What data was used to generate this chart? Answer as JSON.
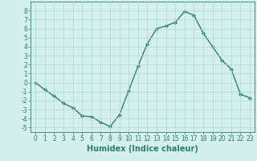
{
  "x": [
    0,
    1,
    2,
    3,
    4,
    5,
    6,
    7,
    8,
    9,
    10,
    11,
    12,
    13,
    14,
    15,
    16,
    17,
    18,
    19,
    20,
    21,
    22,
    23
  ],
  "y": [
    0.0,
    -0.8,
    -1.5,
    -2.3,
    -2.8,
    -3.7,
    -3.8,
    -4.4,
    -4.9,
    -3.6,
    -0.9,
    1.8,
    4.3,
    6.0,
    6.3,
    6.7,
    7.9,
    7.5,
    5.5,
    4.0,
    2.5,
    1.5,
    -1.3,
    -1.7
  ],
  "line_color": "#2e7d6e",
  "marker": "D",
  "marker_size": 2,
  "linewidth": 1.0,
  "bg_color": "#d4f0ec",
  "grid_color": "#b0d8d2",
  "xlabel": "Humidex (Indice chaleur)",
  "xlim": [
    -0.5,
    23.5
  ],
  "ylim": [
    -5.5,
    9.0
  ],
  "yticks": [
    -5,
    -4,
    -3,
    -2,
    -1,
    0,
    1,
    2,
    3,
    4,
    5,
    6,
    7,
    8
  ],
  "xticks": [
    0,
    1,
    2,
    3,
    4,
    5,
    6,
    7,
    8,
    9,
    10,
    11,
    12,
    13,
    14,
    15,
    16,
    17,
    18,
    19,
    20,
    21,
    22,
    23
  ],
  "tick_fontsize": 5.5,
  "label_fontsize": 7
}
